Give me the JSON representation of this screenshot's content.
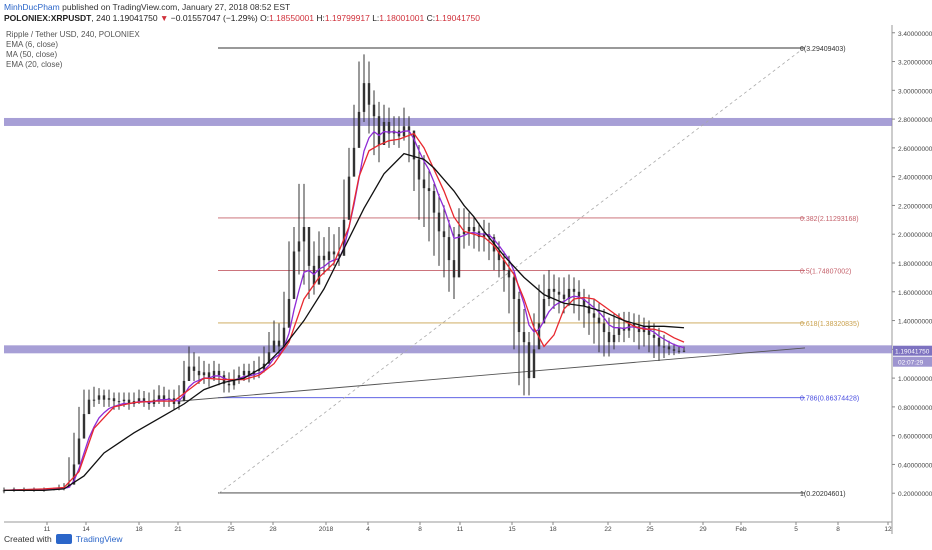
{
  "header": {
    "author": "MinhDucPham",
    "published": "published on TradingView.com, January 27, 2018 08:52 EST",
    "symbol": "POLONIEX:XRPUSDT",
    "interval": "240",
    "last": "1.19041750",
    "change": "−0.01557047 (−1.29%)",
    "open_label": "O:",
    "open": "1.18550001",
    "high_label": "H:",
    "high": "1.19799917",
    "low_label": "L:",
    "low": "1.18001001",
    "close_label": "C:",
    "close": "1.19041750"
  },
  "legend": {
    "pair": "Ripple / Tether USD, 240, POLONIEX",
    "ema6": "EMA (6, close)",
    "ma50": "MA (50, close)",
    "ema20": "EMA (20, close)"
  },
  "footer": {
    "created_with": "Created with",
    "brand": "TradingView"
  },
  "colors": {
    "ema6": "#8e2bd6",
    "ma50": "#111111",
    "ema20": "#e8282f",
    "band": "#8a7fc8",
    "fib0": "#333333",
    "fib382": "#c4606a",
    "fib5": "#c4606a",
    "fib618": "#c9a04c",
    "fib786": "#4a4ee0",
    "fib1": "#333333",
    "price_tag": "#7d72c0"
  },
  "chart_data": {
    "type": "line",
    "title": "Ripple / Tether USD, 240, POLONIEX",
    "x_ticks": [
      "11",
      "14",
      "18",
      "21",
      "25",
      "28",
      "2018",
      "4",
      "8",
      "11",
      "15",
      "18",
      "22",
      "25",
      "29",
      "Feb",
      "5",
      "8",
      "12"
    ],
    "y_ticks": [
      "3.40000000",
      "3.20000000",
      "3.00000000",
      "2.80000000",
      "2.60000000",
      "2.40000000",
      "2.20000000",
      "2.00000000",
      "1.80000000",
      "1.60000000",
      "1.40000000",
      "1.20000000",
      "1.00000000",
      "0.80000000",
      "0.60000000",
      "0.40000000",
      "0.20000000"
    ],
    "ylim": [
      0.0,
      3.44
    ],
    "price_x": [
      0,
      10,
      20,
      30,
      40,
      50,
      55,
      60,
      65,
      70,
      75,
      80,
      85,
      90,
      95,
      100,
      105,
      110,
      115,
      120,
      125,
      130,
      135,
      140,
      145,
      150,
      155,
      160,
      165,
      170,
      175,
      180,
      185,
      190,
      195,
      200,
      205,
      210,
      215,
      220,
      225,
      230,
      235,
      240,
      245,
      250,
      255,
      260,
      265,
      270,
      275,
      280,
      285,
      290,
      295,
      300,
      305,
      310,
      315,
      320,
      325,
      330,
      335,
      340,
      345,
      350,
      355,
      360,
      365,
      370,
      375,
      380,
      385,
      390,
      395,
      400,
      405,
      410,
      415,
      420,
      425,
      430,
      435,
      440,
      445,
      450,
      455,
      460,
      465,
      470,
      475,
      480,
      485,
      490,
      495,
      500,
      505,
      510,
      515,
      520,
      525,
      530,
      535,
      540,
      545,
      550,
      555,
      560,
      565,
      570,
      575,
      580,
      585,
      590,
      595,
      600,
      605,
      610,
      615,
      620,
      625,
      630,
      635,
      640,
      645,
      650,
      655,
      660,
      665,
      670,
      675,
      680,
      685
    ],
    "price_close": [
      0.22,
      0.23,
      0.23,
      0.23,
      0.23,
      0.23,
      0.24,
      0.24,
      0.26,
      0.4,
      0.58,
      0.75,
      0.85,
      0.85,
      0.88,
      0.85,
      0.86,
      0.84,
      0.84,
      0.85,
      0.82,
      0.84,
      0.86,
      0.84,
      0.82,
      0.85,
      0.88,
      0.85,
      0.86,
      0.82,
      0.84,
      0.98,
      1.08,
      1.05,
      1.02,
      1.04,
      1.0,
      1.05,
      1.02,
      0.96,
      0.95,
      0.99,
      1.02,
      1.05,
      1.02,
      1.05,
      1.06,
      1.1,
      1.18,
      1.26,
      1.22,
      1.35,
      1.55,
      1.88,
      1.95,
      2.05,
      1.78,
      1.65,
      1.85,
      1.82,
      1.88,
      1.86,
      1.85,
      2.1,
      2.4,
      2.6,
      2.85,
      3.05,
      2.9,
      2.82,
      2.62,
      2.78,
      2.7,
      2.72,
      2.68,
      2.75,
      2.72,
      2.52,
      2.38,
      2.32,
      2.3,
      2.15,
      2.02,
      1.98,
      1.82,
      1.7,
      2.0,
      2.02,
      2.05,
      2.02,
      1.98,
      2.0,
      1.98,
      1.88,
      1.82,
      1.75,
      1.7,
      1.55,
      1.32,
      1.25,
      1.0,
      1.2,
      1.38,
      1.55,
      1.62,
      1.6,
      1.58,
      1.55,
      1.62,
      1.6,
      1.55,
      1.5,
      1.45,
      1.42,
      1.38,
      1.32,
      1.25,
      1.3,
      1.35,
      1.33,
      1.38,
      1.36,
      1.32,
      1.36,
      1.3,
      1.28,
      1.22,
      1.22,
      1.2,
      1.19,
      1.19,
      1.19
    ],
    "price_high": [
      0.24,
      0.24,
      0.24,
      0.24,
      0.24,
      0.24,
      0.26,
      0.27,
      0.45,
      0.62,
      0.8,
      0.92,
      0.92,
      0.94,
      0.93,
      0.92,
      0.92,
      0.9,
      0.9,
      0.9,
      0.9,
      0.9,
      0.92,
      0.91,
      0.9,
      0.92,
      0.95,
      0.94,
      0.92,
      0.92,
      0.95,
      1.12,
      1.22,
      1.18,
      1.15,
      1.12,
      1.1,
      1.12,
      1.1,
      1.05,
      1.04,
      1.06,
      1.08,
      1.1,
      1.1,
      1.12,
      1.15,
      1.22,
      1.32,
      1.4,
      1.38,
      1.6,
      1.95,
      2.05,
      2.35,
      2.35,
      2.05,
      1.95,
      2.02,
      1.98,
      2.05,
      2.0,
      2.05,
      2.38,
      2.6,
      2.9,
      3.2,
      3.25,
      3.2,
      3.0,
      2.92,
      2.9,
      2.88,
      2.82,
      2.82,
      2.88,
      2.82,
      2.72,
      2.62,
      2.55,
      2.45,
      2.35,
      2.28,
      2.2,
      2.1,
      2.05,
      2.18,
      2.18,
      2.15,
      2.12,
      2.08,
      2.1,
      2.08,
      2.0,
      1.95,
      1.88,
      1.85,
      1.75,
      1.6,
      1.48,
      1.32,
      1.45,
      1.65,
      1.72,
      1.75,
      1.72,
      1.7,
      1.7,
      1.72,
      1.7,
      1.68,
      1.62,
      1.58,
      1.55,
      1.52,
      1.48,
      1.42,
      1.45,
      1.45,
      1.46,
      1.46,
      1.45,
      1.44,
      1.42,
      1.4,
      1.38,
      1.35,
      1.3,
      1.26,
      1.24,
      1.22,
      1.22
    ],
    "price_low": [
      0.2,
      0.21,
      0.21,
      0.21,
      0.21,
      0.22,
      0.22,
      0.22,
      0.24,
      0.26,
      0.45,
      0.65,
      0.78,
      0.8,
      0.82,
      0.8,
      0.8,
      0.78,
      0.78,
      0.8,
      0.78,
      0.8,
      0.82,
      0.8,
      0.78,
      0.8,
      0.82,
      0.8,
      0.8,
      0.78,
      0.78,
      0.92,
      1.0,
      0.98,
      0.96,
      0.96,
      0.94,
      0.98,
      0.95,
      0.9,
      0.9,
      0.92,
      0.96,
      0.98,
      0.97,
      0.99,
      1.0,
      1.04,
      1.1,
      1.18,
      1.15,
      1.28,
      1.45,
      1.65,
      1.72,
      1.65,
      1.55,
      1.58,
      1.7,
      1.72,
      1.75,
      1.78,
      1.78,
      1.95,
      2.25,
      2.45,
      2.65,
      2.78,
      2.7,
      2.55,
      2.5,
      2.62,
      2.6,
      2.62,
      2.6,
      2.65,
      2.5,
      2.3,
      2.1,
      2.05,
      1.95,
      1.85,
      1.78,
      1.7,
      1.6,
      1.55,
      1.88,
      1.9,
      1.92,
      1.9,
      1.88,
      1.88,
      1.82,
      1.75,
      1.7,
      1.6,
      1.45,
      1.2,
      0.95,
      0.88,
      0.88,
      1.1,
      1.28,
      1.42,
      1.5,
      1.48,
      1.45,
      1.45,
      1.5,
      1.45,
      1.4,
      1.35,
      1.3,
      1.24,
      1.18,
      1.15,
      1.15,
      1.2,
      1.25,
      1.25,
      1.28,
      1.25,
      1.2,
      1.22,
      1.18,
      1.14,
      1.12,
      1.14,
      1.16,
      1.16,
      1.17,
      1.18
    ],
    "ema20_x": [
      0,
      40,
      60,
      75,
      90,
      110,
      130,
      150,
      170,
      185,
      200,
      220,
      240,
      255,
      270,
      285,
      300,
      315,
      330,
      345,
      355,
      365,
      375,
      385,
      395,
      410,
      420,
      430,
      440,
      450,
      460,
      470,
      480,
      490,
      500,
      510,
      520,
      530,
      540,
      550,
      560,
      570,
      580,
      590,
      600,
      610,
      620,
      630,
      640,
      650,
      660,
      670,
      680
    ],
    "ema20_y": [
      0.22,
      0.23,
      0.24,
      0.35,
      0.65,
      0.8,
      0.83,
      0.84,
      0.84,
      0.92,
      1.0,
      0.99,
      0.99,
      1.02,
      1.1,
      1.25,
      1.55,
      1.7,
      1.8,
      2.05,
      2.4,
      2.58,
      2.62,
      2.65,
      2.66,
      2.7,
      2.6,
      2.45,
      2.3,
      2.12,
      2.02,
      2.0,
      1.98,
      1.92,
      1.82,
      1.72,
      1.55,
      1.35,
      1.22,
      1.3,
      1.48,
      1.55,
      1.56,
      1.55,
      1.5,
      1.45,
      1.4,
      1.36,
      1.34,
      1.34,
      1.32,
      1.28,
      1.25
    ],
    "ma50_x": [
      0,
      40,
      60,
      80,
      100,
      130,
      160,
      180,
      200,
      220,
      240,
      260,
      280,
      300,
      320,
      340,
      360,
      380,
      400,
      420,
      430,
      440,
      450,
      460,
      470,
      480,
      500,
      520,
      540,
      560,
      580,
      600,
      620,
      640,
      660,
      680
    ],
    "ma50_y": [
      0.22,
      0.22,
      0.23,
      0.32,
      0.48,
      0.62,
      0.74,
      0.82,
      0.92,
      0.97,
      1.0,
      1.08,
      1.22,
      1.4,
      1.62,
      1.9,
      2.18,
      2.42,
      2.56,
      2.52,
      2.46,
      2.38,
      2.3,
      2.2,
      2.12,
      2.02,
      1.85,
      1.7,
      1.58,
      1.52,
      1.5,
      1.46,
      1.4,
      1.36,
      1.36,
      1.35
    ],
    "fib_levels": [
      {
        "label": "0(3.29409403)",
        "value": 3.29409403
      },
      {
        "label": "0.382(2.11293168)",
        "value": 2.11293168
      },
      {
        "label": "0.5(1.74807002)",
        "value": 1.74807002
      },
      {
        "label": "0.618(1.38320835)",
        "value": 1.38320835
      },
      {
        "label": "0.786(0.86374428)",
        "value": 0.86374428
      },
      {
        "label": "1(0.20204601)",
        "value": 0.20204601
      }
    ],
    "support_bands": [
      2.78,
      1.2
    ],
    "trendline": {
      "from": [
        215,
        0.84
      ],
      "to": [
        805,
        1.21
      ]
    },
    "dashed_trendline": {
      "from": [
        215,
        0.2
      ],
      "to": [
        805,
        3.3
      ]
    },
    "price_tag": "1.19041750",
    "countdown": "02:07:29",
    "legend_placement": "top-left",
    "grid": false
  }
}
